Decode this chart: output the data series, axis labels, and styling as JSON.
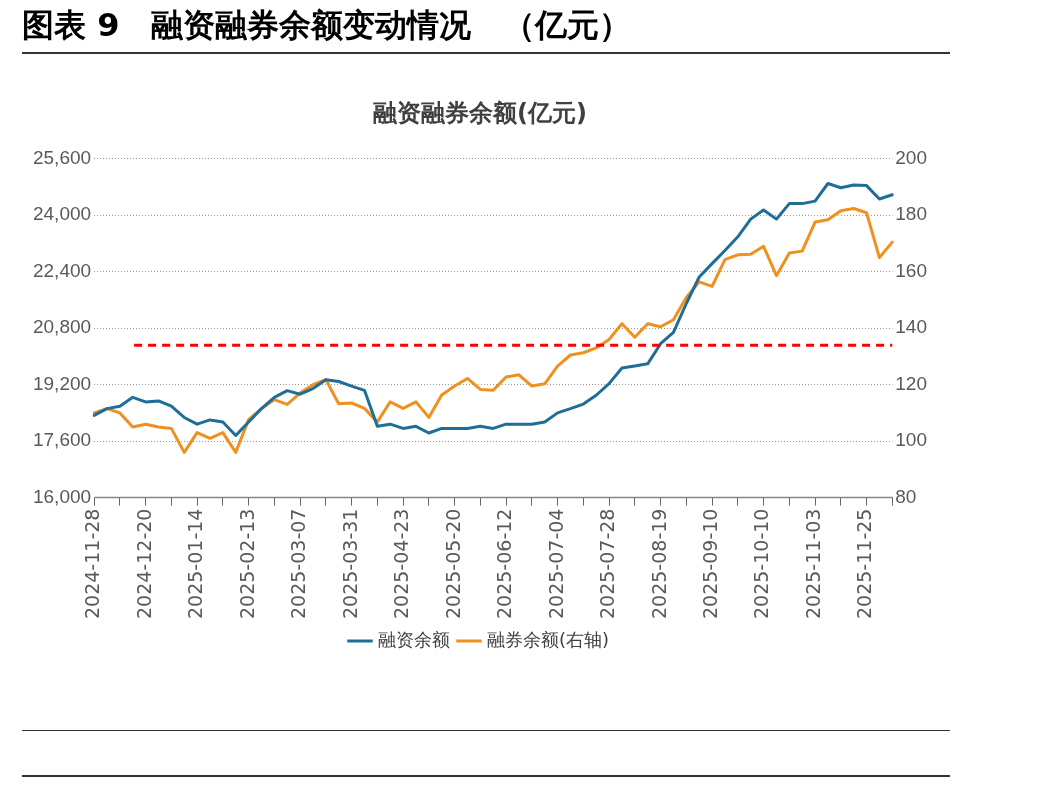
{
  "chart_data": {
    "type": "line",
    "title": "图表 9　融资融券余额变动情况　（亿元）",
    "subtitle": "融资融券余额(亿元)",
    "categories": [
      "2024-11-28",
      null,
      null,
      null,
      "2024-12-20",
      null,
      null,
      null,
      "2025-01-14",
      null,
      null,
      null,
      "2025-02-13",
      null,
      null,
      null,
      "2025-03-07",
      null,
      null,
      null,
      "2025-03-31",
      null,
      null,
      null,
      "2025-04-23",
      null,
      null,
      null,
      "2025-05-20",
      null,
      null,
      null,
      "2025-06-12",
      null,
      null,
      null,
      "2025-07-04",
      null,
      null,
      null,
      "2025-07-28",
      null,
      null,
      null,
      "2025-08-19",
      null,
      null,
      null,
      "2025-09-10",
      null,
      null,
      null,
      "2025-10-10",
      null,
      null,
      null,
      "2025-11-03",
      null,
      null,
      null,
      "2025-11-25",
      null,
      null
    ],
    "series": [
      {
        "name": "融资余额",
        "color": "#1f6e97",
        "values": [
          18330,
          18520,
          18590,
          18840,
          18710,
          18740,
          18590,
          18270,
          18080,
          18200,
          18140,
          17760,
          18140,
          18520,
          18840,
          19030,
          18930,
          19090,
          19340,
          19290,
          19160,
          19040,
          18020,
          18080,
          17960,
          18020,
          17830,
          17960,
          17960,
          17960,
          18020,
          17960,
          18080,
          18080,
          18080,
          18140,
          18400,
          18520,
          18650,
          18900,
          19230,
          19670,
          19730,
          19790,
          20360,
          20680,
          21500,
          22250,
          22630,
          23000,
          23390,
          23890,
          24150,
          23890,
          24330,
          24330,
          24400,
          24900,
          24780,
          24860,
          24840,
          24460,
          24580
        ]
      },
      {
        "name": "融券余额(右轴)",
        "color": "#f0901e",
        "axis": "y2",
        "values": [
          110,
          111.5,
          110,
          105,
          106,
          105,
          104.5,
          96,
          103,
          101,
          103,
          96,
          107.6,
          111.5,
          114.7,
          113,
          117,
          120,
          121.8,
          113.2,
          113.5,
          111.6,
          106.8,
          113.9,
          111.6,
          113.9,
          108.4,
          116.3,
          119.5,
          122.2,
          118.3,
          118,
          122.7,
          123.5,
          119.5,
          120.3,
          126.6,
          130.5,
          131.3,
          133,
          136,
          141.6,
          136.8,
          141.6,
          140.5,
          143,
          150.9,
          156.4,
          154.8,
          164.3,
          166,
          166.2,
          169,
          158.6,
          166.6,
          167.3,
          177.6,
          178.4,
          181.6,
          182.4,
          180.9,
          165,
          170.5
        ]
      }
    ],
    "ylim": [
      16000,
      25600
    ],
    "yticks": [
      {
        "value": 16000,
        "label": "16,000"
      },
      {
        "value": 17600,
        "label": "17,600"
      },
      {
        "value": 19200,
        "label": "19,200"
      },
      {
        "value": 20800,
        "label": "20,800"
      },
      {
        "value": 22400,
        "label": "22,400"
      },
      {
        "value": 24000,
        "label": "24,000"
      },
      {
        "value": 25600,
        "label": "25,600"
      }
    ],
    "y2lim": [
      80,
      200
    ],
    "y2ticks": [
      80,
      100,
      120,
      140,
      160,
      180,
      200
    ],
    "ref_lines": [
      {
        "axis": "y2",
        "value": 134,
        "color": "#ff0000",
        "line_style": "dashed"
      }
    ],
    "grid": "y",
    "legend": "bottom",
    "marker": "none",
    "line_style": "solid"
  }
}
